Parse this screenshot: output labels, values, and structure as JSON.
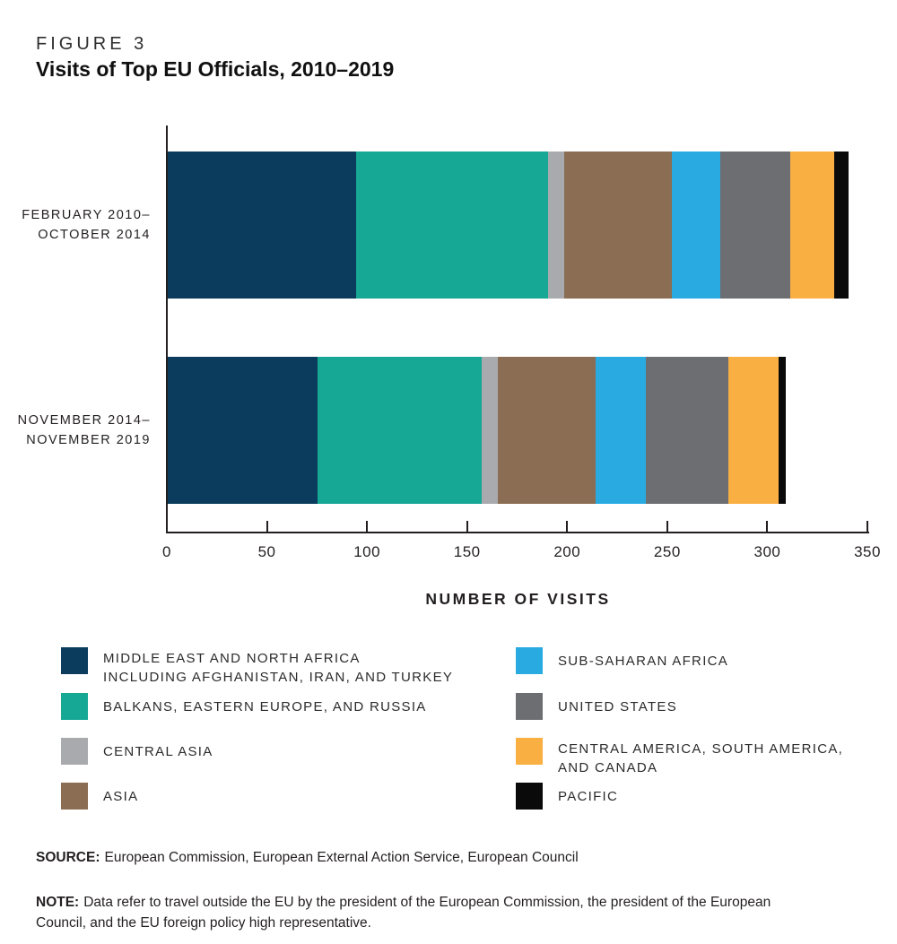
{
  "figure": {
    "label": "FIGURE 3",
    "title": "Visits of Top EU Officials, 2010–2019"
  },
  "chart_data": {
    "type": "bar",
    "orientation": "horizontal",
    "stacked": true,
    "title": "Visits of Top EU Officials, 2010–2019",
    "xlabel": "NUMBER OF VISITS",
    "ylabel": "",
    "xlim": [
      0,
      350
    ],
    "xticks": [
      0,
      50,
      100,
      150,
      200,
      250,
      300,
      350
    ],
    "grid": false,
    "legend_position": "bottom",
    "categories": [
      "February 2010–October 2014",
      "November 2014–November 2019"
    ],
    "category_label_lines": [
      [
        "FEBRUARY 2010–",
        "OCTOBER 2014"
      ],
      [
        "NOVEMBER 2014–",
        "NOVEMBER 2019"
      ]
    ],
    "series": [
      {
        "name": "MIDDLE EAST AND NORTH AFRICA INCLUDING AFGHANISTAN, IRAN, AND TURKEY",
        "color": "#0B3C5D",
        "values": [
          94,
          75
        ]
      },
      {
        "name": "BALKANS, EASTERN EUROPE, AND RUSSIA",
        "color": "#16A795",
        "values": [
          96,
          82
        ]
      },
      {
        "name": "CENTRAL ASIA",
        "color": "#A8AAAD",
        "values": [
          8,
          8
        ]
      },
      {
        "name": "ASIA",
        "color": "#8A6D52",
        "values": [
          54,
          49
        ]
      },
      {
        "name": "SUB-SAHARAN AFRICA",
        "color": "#29ABE2",
        "values": [
          24,
          25
        ]
      },
      {
        "name": "UNITED STATES",
        "color": "#6D6E71",
        "values": [
          35,
          41
        ]
      },
      {
        "name": "CENTRAL AMERICA, SOUTH AMERICA, AND CANADA",
        "color": "#FAAF42",
        "values": [
          22,
          25
        ]
      },
      {
        "name": "PACIFIC",
        "color": "#0A0A0A",
        "values": [
          7,
          4
        ]
      }
    ],
    "bar_totals": [
      340,
      309
    ]
  },
  "legend": {
    "columns": [
      {
        "items": [
          {
            "lines": [
              "MIDDLE EAST AND NORTH AFRICA",
              "INCLUDING AFGHANISTAN, IRAN, AND TURKEY"
            ],
            "color": "#0B3C5D"
          },
          {
            "lines": [
              "BALKANS, EASTERN EUROPE, AND RUSSIA"
            ],
            "color": "#16A795"
          },
          {
            "lines": [
              "CENTRAL ASIA"
            ],
            "color": "#A8AAAD"
          },
          {
            "lines": [
              "ASIA"
            ],
            "color": "#8A6D52"
          }
        ]
      },
      {
        "items": [
          {
            "lines": [
              "SUB-SAHARAN AFRICA"
            ],
            "color": "#29ABE2"
          },
          {
            "lines": [
              "UNITED STATES"
            ],
            "color": "#6D6E71"
          },
          {
            "lines": [
              "CENTRAL AMERICA, SOUTH AMERICA,",
              "AND CANADA"
            ],
            "color": "#FAAF42"
          },
          {
            "lines": [
              "PACIFIC"
            ],
            "color": "#0A0A0A"
          }
        ]
      }
    ]
  },
  "source": {
    "prefix": "SOURCE:",
    "text": "European Commission, European External Action Service, European Council"
  },
  "note": {
    "prefix": "NOTE:",
    "text": "Data refer to travel outside the EU by the president of the European Commission, the president of the European Council, and the EU foreign policy high representative."
  }
}
